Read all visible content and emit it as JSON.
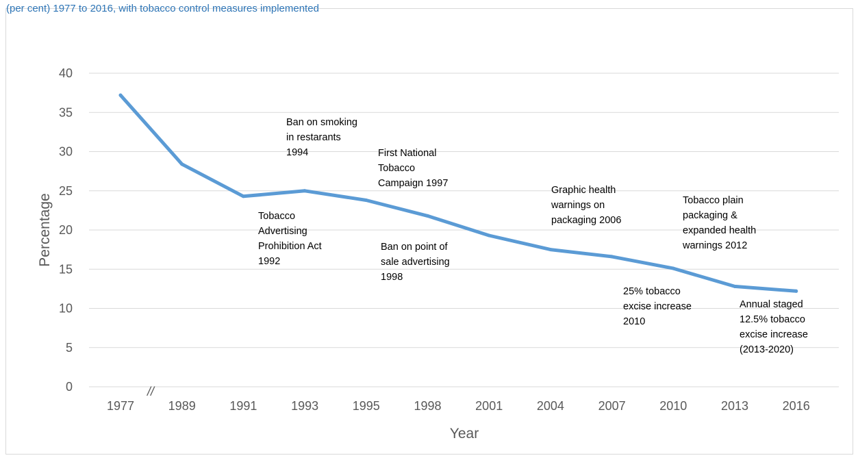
{
  "caption": "(per cent) 1977 to 2016, with tobacco control measures implemented",
  "chart_data": {
    "type": "line",
    "title": "",
    "xlabel": "Year",
    "ylabel": "Percentage",
    "categories": [
      "1977",
      "1989",
      "1991",
      "1993",
      "1995",
      "1998",
      "2001",
      "2004",
      "2007",
      "2010",
      "2013",
      "2016"
    ],
    "series": [
      {
        "name": "",
        "values": [
          37.2,
          28.4,
          24.3,
          25.0,
          23.8,
          21.8,
          19.3,
          17.5,
          16.6,
          15.1,
          12.8,
          12.2
        ],
        "color": "#5b9bd5"
      }
    ],
    "ylim": [
      0,
      40
    ],
    "yticks": [
      "0",
      "5",
      "10",
      "15",
      "20",
      "25",
      "30",
      "35",
      "40"
    ],
    "grid": true,
    "axis_break": "//",
    "annotations": [
      {
        "lines": [
          "Ban on smoking",
          "in restarants",
          "1994"
        ]
      },
      {
        "lines": [
          "First National",
          "Tobacco",
          "Campaign 1997"
        ]
      },
      {
        "lines": [
          "Tobacco",
          "Advertising",
          "Prohibition Act",
          "1992"
        ]
      },
      {
        "lines": [
          "Ban on point of",
          "sale advertising",
          "1998"
        ]
      },
      {
        "lines": [
          "Graphic health",
          "warnings on",
          "packaging 2006"
        ]
      },
      {
        "lines": [
          "Tobacco plain",
          "packaging &",
          "expanded health",
          "warnings 2012"
        ]
      },
      {
        "lines": [
          "25% tobacco",
          "excise increase",
          "2010"
        ]
      },
      {
        "lines": [
          "Annual staged",
          "12.5% tobacco",
          "excise increase",
          "(2013-2020)"
        ]
      }
    ]
  }
}
